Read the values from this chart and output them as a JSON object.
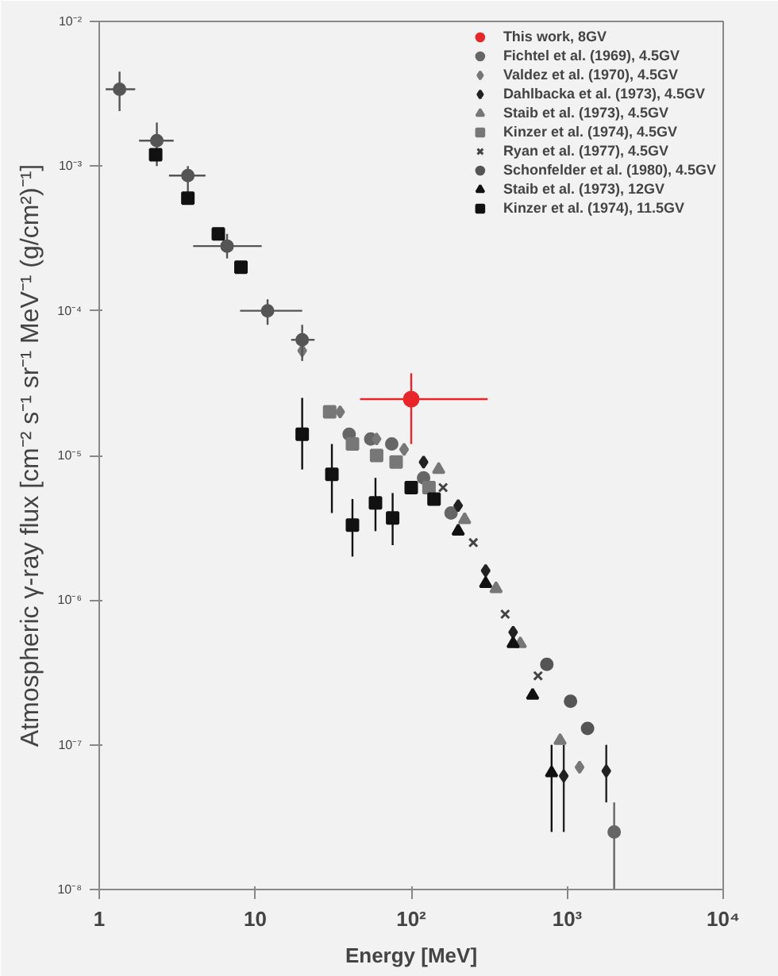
{
  "chart_data": {
    "type": "scatter",
    "xlabel": "Energy [MeV]",
    "ylabel": "Atmospheric γ-ray flux [cm⁻² s⁻¹ sr⁻¹ MeV⁻¹ (g/cm²)⁻¹]",
    "log": "xy",
    "grid": false,
    "legend": "top right",
    "xlim": [
      1,
      10000
    ],
    "ylim": [
      1e-08,
      0.01
    ],
    "xticks": [
      1,
      10,
      {
        "value": 100,
        "label": "10²"
      },
      {
        "value": 1000,
        "label": "10³"
      },
      {
        "value": 10000,
        "label": "10⁴"
      }
    ],
    "yticks": [
      {
        "value": 1e-08,
        "label": "10⁻⁸"
      },
      {
        "value": 1e-07,
        "label": "10⁻⁷"
      },
      {
        "value": 1e-06,
        "label": "10⁻⁶"
      },
      {
        "value": 1e-05,
        "label": "10⁻⁵"
      },
      {
        "value": 0.0001,
        "label": "10⁻⁴"
      },
      {
        "value": 0.001,
        "label": "10⁻³"
      },
      {
        "value": 0.01,
        "label": "10⁻²"
      }
    ],
    "series": [
      {
        "name": "This work, 8GV",
        "color": "#e8262a",
        "marker": "circle",
        "x": [
          100
        ],
        "values": [
          2.45e-05
        ],
        "errors": [
          [
            1.2e-05,
            3.7e-05
          ]
        ],
        "xerrors": [
          [
            47,
            309
          ]
        ]
      },
      {
        "name": "Fichtel et al. (1969), 4.5GV",
        "color": "#666666",
        "marker": "circle",
        "x": [
          40,
          55,
          75,
          120,
          180,
          2000
        ],
        "values": [
          1.4e-05,
          1.3e-05,
          1.2e-05,
          7e-06,
          4e-06,
          2.5e-08
        ],
        "errors": [
          null,
          null,
          null,
          null,
          null,
          [
            1e-08,
            4e-08
          ]
        ]
      },
      {
        "name": "Valdez et al. (1970), 4.5GV",
        "color": "#777777",
        "marker": "diamond",
        "x": [
          20,
          35,
          60,
          90,
          1200
        ],
        "values": [
          5.3e-05,
          2e-05,
          1.3e-05,
          1.1e-05,
          7e-08
        ]
      },
      {
        "name": "Dahlbacka et al. (1973), 4.5GV",
        "color": "#222222",
        "marker": "diamond",
        "x": [
          120,
          200,
          300,
          450,
          950,
          1780
        ],
        "values": [
          9e-06,
          4.5e-06,
          1.6e-06,
          6e-07,
          6.1e-08,
          6.6e-08
        ],
        "errors": [
          null,
          null,
          null,
          null,
          [
            2.5e-08,
            1e-07
          ],
          [
            4e-08,
            1e-07
          ]
        ]
      },
      {
        "name": "Staib et al. (1973), 4.5GV",
        "color": "#777777",
        "marker": "triangle",
        "x": [
          150,
          220,
          350,
          500,
          900
        ],
        "values": [
          8e-06,
          3.6e-06,
          1.2e-06,
          5e-07,
          1.07e-07
        ]
      },
      {
        "name": "Kinzer et al. (1974), 4.5GV",
        "color": "#777777",
        "marker": "square",
        "x": [
          30,
          42,
          60,
          80,
          130
        ],
        "values": [
          2e-05,
          1.2e-05,
          1e-05,
          9e-06,
          6e-06
        ]
      },
      {
        "name": "Ryan et al. (1977), 4.5GV",
        "color": "#444444",
        "marker": "cross",
        "x": [
          160,
          250,
          400,
          650
        ],
        "values": [
          6e-06,
          2.5e-06,
          8e-07,
          3e-07
        ]
      },
      {
        "name": "Schonfelder et al. (1980), 4.5GV",
        "color": "#555555",
        "marker": "circle",
        "x": [
          1.35,
          2.34,
          3.7,
          6.6,
          12,
          20,
          740,
          1050,
          1350
        ],
        "values": [
          0.0034,
          0.0015,
          0.00086,
          0.00028,
          0.0001,
          6.3e-05,
          3.6e-07,
          2e-07,
          1.3e-07
        ],
        "errors": [
          [
            0.0024,
            0.0045
          ],
          [
            0.001,
            0.002
          ],
          [
            0.00065,
            0.001
          ],
          [
            0.00023,
            0.00034
          ],
          [
            8e-05,
            0.00012
          ],
          [
            4.5e-05,
            8e-05
          ],
          null,
          null,
          null
        ],
        "xerrors": [
          [
            1.1,
            1.7
          ],
          [
            1.8,
            3
          ],
          [
            2.8,
            4.8
          ],
          [
            4,
            11
          ],
          [
            8,
            20
          ],
          [
            17,
            24
          ],
          null,
          null,
          null
        ]
      },
      {
        "name": "Staib et al. (1973), 12GV",
        "color": "#111111",
        "marker": "triangle",
        "x": [
          200,
          300,
          450,
          600,
          794
        ],
        "values": [
          3e-06,
          1.3e-06,
          5e-07,
          2.2e-07,
          6.4e-08
        ],
        "errors": [
          null,
          null,
          null,
          null,
          [
            2.5e-08,
            1e-07
          ]
        ]
      },
      {
        "name": "Kinzer et al. (1974), 11.5GV",
        "color": "#111111",
        "marker": "square",
        "x": [
          2.3,
          3.7,
          5.8,
          8.1,
          20,
          31,
          42,
          59,
          76,
          100,
          140
        ],
        "values": [
          0.0012,
          0.0006,
          0.00034,
          0.0002,
          1.4e-05,
          7.4e-06,
          3.3e-06,
          4.7e-06,
          3.7e-06,
          6e-06,
          5e-06
        ],
        "errors": [
          null,
          null,
          null,
          null,
          [
            8e-06,
            2.5e-05
          ],
          [
            4e-06,
            1.2e-05
          ],
          [
            2e-06,
            5e-06
          ],
          [
            3e-06,
            7e-06
          ],
          [
            2.4e-06,
            5.5e-06
          ],
          null,
          null
        ]
      }
    ]
  }
}
